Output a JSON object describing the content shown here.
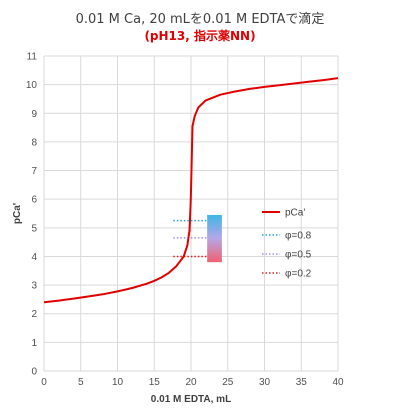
{
  "title": "0.01 M Ca, 20 mLを0.01 M EDTAで滴定",
  "subtitle": "(pH13, 指示薬NN)",
  "colors": {
    "curve": "#e00000",
    "phi08": "#2aa7d6",
    "phi05": "#a88be0",
    "phi02": "#e02020",
    "grid": "#d9d9d9"
  },
  "chart_data": {
    "type": "line",
    "title": "0.01 M Ca, 20 mLを0.01 M EDTAで滴定",
    "subtitle": "(pH13, 指示薬NN)",
    "xlabel": "0.01 M EDTA, mL",
    "ylabel": "pCa'",
    "xlim": [
      0,
      40
    ],
    "ylim": [
      0,
      11
    ],
    "xticks": [
      "0",
      "5",
      "10",
      "15",
      "20",
      "25",
      "30",
      "35",
      "40"
    ],
    "yticks": [
      "0",
      "1",
      "2",
      "3",
      "4",
      "5",
      "6",
      "7",
      "8",
      "9",
      "10",
      "11"
    ],
    "grid": true,
    "legend_position": "right",
    "series": [
      {
        "name": "pCa'",
        "style": "solid",
        "x": [
          0,
          2,
          4,
          6,
          8,
          10,
          12,
          14,
          15,
          16,
          17,
          18,
          19,
          19.5,
          19.8,
          19.95,
          20,
          20.05,
          20.2,
          20.5,
          21,
          22,
          24,
          26,
          28,
          30,
          32,
          34,
          36,
          38,
          40
        ],
        "y": [
          2.4,
          2.46,
          2.53,
          2.6,
          2.68,
          2.78,
          2.9,
          3.05,
          3.15,
          3.27,
          3.43,
          3.66,
          4.0,
          4.38,
          4.9,
          5.8,
          6.3,
          6.9,
          8.55,
          8.9,
          9.2,
          9.45,
          9.65,
          9.76,
          9.85,
          9.92,
          9.98,
          10.04,
          10.1,
          10.16,
          10.23
        ]
      },
      {
        "name": "φ=0.8",
        "style": "dotted",
        "y_level": 5.25
      },
      {
        "name": "φ=0.5",
        "style": "dotted",
        "y_level": 4.65
      },
      {
        "name": "φ=0.2",
        "style": "dotted",
        "y_level": 4.0
      }
    ],
    "indicator_band": {
      "x_range": [
        22.2,
        24.2
      ],
      "y_range": [
        3.8,
        5.45
      ]
    }
  }
}
